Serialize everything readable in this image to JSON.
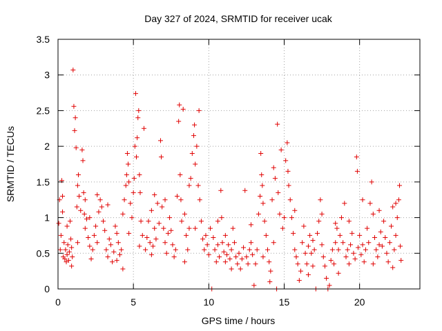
{
  "chart_data": {
    "type": "scatter",
    "title": "Day 327 of 2024, SRMTID for receiver ucak",
    "xlabel": "GPS time / hours",
    "ylabel": "SRMTID / TECUs",
    "xlim": [
      0,
      24
    ],
    "ylim": [
      0,
      3.5
    ],
    "xticks": [
      0,
      5,
      10,
      15,
      20
    ],
    "yticks": [
      0,
      0.5,
      1,
      1.5,
      2,
      2.5,
      3,
      3.5
    ],
    "grid": true,
    "marker": "plus",
    "color": "#e00000",
    "series": [
      {
        "name": "SRMTID",
        "points": [
          [
            0.05,
            0.92
          ],
          [
            0.1,
            1.25
          ],
          [
            0.15,
            0.55
          ],
          [
            0.2,
            0.75
          ],
          [
            0.25,
            1.52
          ],
          [
            0.3,
            1.3
          ],
          [
            0.35,
            0.45
          ],
          [
            0.4,
            0.65
          ],
          [
            0.45,
            0.42
          ],
          [
            0.5,
            0.55
          ],
          [
            0.55,
            0.38
          ],
          [
            0.6,
            0.48
          ],
          [
            0.65,
            0.62
          ],
          [
            0.7,
            0.4
          ],
          [
            0.75,
            0.52
          ],
          [
            0.8,
            0.95
          ],
          [
            0.85,
            0.7
          ],
          [
            0.9,
            0.58
          ],
          [
            0.95,
            0.45
          ],
          [
            1.0,
            3.07
          ],
          [
            1.05,
            2.56
          ],
          [
            1.1,
            2.22
          ],
          [
            1.15,
            2.4
          ],
          [
            1.2,
            1.98
          ],
          [
            1.25,
            1.15
          ],
          [
            1.3,
            1.45
          ],
          [
            1.35,
            1.6
          ],
          [
            1.4,
            1.3
          ],
          [
            1.5,
            1.1
          ],
          [
            1.6,
            1.95
          ],
          [
            1.65,
            1.8
          ],
          [
            1.7,
            1.35
          ],
          [
            1.75,
            1.05
          ],
          [
            1.8,
            0.85
          ],
          [
            1.9,
            0.98
          ],
          [
            2.0,
            0.72
          ],
          [
            2.1,
            0.6
          ],
          [
            2.2,
            0.42
          ],
          [
            2.3,
            0.55
          ],
          [
            2.4,
            0.75
          ],
          [
            2.5,
            0.88
          ],
          [
            2.6,
            0.65
          ],
          [
            2.7,
            1.08
          ],
          [
            2.8,
            1.25
          ],
          [
            2.9,
            1.15
          ],
          [
            3.0,
            0.95
          ],
          [
            3.1,
            0.82
          ],
          [
            3.2,
            0.55
          ],
          [
            3.3,
            0.45
          ],
          [
            3.4,
            0.7
          ],
          [
            3.5,
            0.62
          ],
          [
            3.6,
            0.38
          ],
          [
            3.7,
            0.52
          ],
          [
            3.8,
            0.88
          ],
          [
            3.9,
            0.78
          ],
          [
            4.0,
            0.65
          ],
          [
            4.1,
            0.48
          ],
          [
            4.2,
            0.55
          ],
          [
            4.3,
            1.05
          ],
          [
            4.4,
            1.25
          ],
          [
            4.5,
            1.45
          ],
          [
            4.55,
            1.6
          ],
          [
            4.6,
            1.9
          ],
          [
            4.65,
            1.75
          ],
          [
            4.7,
            1.5
          ],
          [
            4.8,
            1.2
          ],
          [
            4.9,
            1.0
          ],
          [
            5.0,
            1.35
          ],
          [
            5.05,
            1.55
          ],
          [
            5.1,
            2.0
          ],
          [
            5.15,
            2.74
          ],
          [
            5.2,
            1.85
          ],
          [
            5.25,
            2.12
          ],
          [
            5.3,
            2.4
          ],
          [
            5.35,
            2.5
          ],
          [
            5.4,
            1.6
          ],
          [
            5.45,
            1.35
          ],
          [
            5.5,
            0.95
          ],
          [
            5.6,
            0.75
          ],
          [
            5.7,
            2.25
          ],
          [
            5.8,
            0.55
          ],
          [
            5.9,
            0.72
          ],
          [
            6.0,
            0.95
          ],
          [
            6.1,
            0.65
          ],
          [
            6.2,
            0.48
          ],
          [
            6.3,
            0.6
          ],
          [
            6.4,
            0.85
          ],
          [
            6.5,
            0.7
          ],
          [
            6.6,
            1.2
          ],
          [
            6.7,
            0.92
          ],
          [
            6.8,
            2.08
          ],
          [
            6.85,
            1.85
          ],
          [
            6.9,
            1.15
          ],
          [
            7.0,
            0.85
          ],
          [
            7.1,
            0.65
          ],
          [
            7.2,
            0.5
          ],
          [
            7.3,
            0.78
          ],
          [
            7.4,
            1.0
          ],
          [
            7.5,
            0.82
          ],
          [
            7.6,
            0.62
          ],
          [
            7.7,
            0.45
          ],
          [
            7.8,
            0.55
          ],
          [
            7.9,
            1.3
          ],
          [
            8.0,
            2.35
          ],
          [
            8.05,
            2.58
          ],
          [
            8.1,
            1.6
          ],
          [
            8.15,
            1.25
          ],
          [
            8.2,
            0.95
          ],
          [
            8.3,
            2.52
          ],
          [
            8.4,
            1.05
          ],
          [
            8.5,
            0.75
          ],
          [
            8.6,
            0.55
          ],
          [
            8.7,
            0.85
          ],
          [
            8.8,
            1.55
          ],
          [
            8.9,
            1.9
          ],
          [
            9.0,
            2.15
          ],
          [
            9.05,
            2.3
          ],
          [
            9.1,
            1.75
          ],
          [
            9.2,
            2.0
          ],
          [
            9.3,
            1.45
          ],
          [
            9.35,
            2.5
          ],
          [
            9.4,
            1.25
          ],
          [
            9.5,
            0.95
          ],
          [
            9.6,
            0.7
          ],
          [
            9.7,
            0.55
          ],
          [
            9.8,
            0.75
          ],
          [
            9.9,
            0.62
          ],
          [
            10.0,
            0.48
          ],
          [
            10.1,
            0.85
          ],
          [
            10.2,
            0.0
          ],
          [
            10.3,
            0.72
          ],
          [
            10.4,
            0.55
          ],
          [
            10.5,
            0.38
          ],
          [
            10.6,
            0.62
          ],
          [
            10.7,
            0.45
          ],
          [
            10.8,
            1.38
          ],
          [
            10.85,
            1.0
          ],
          [
            10.9,
            0.65
          ],
          [
            11.0,
            0.52
          ],
          [
            11.1,
            0.38
          ],
          [
            11.2,
            0.48
          ],
          [
            11.3,
            0.62
          ],
          [
            11.4,
            0.42
          ],
          [
            11.5,
            0.55
          ],
          [
            11.6,
            0.85
          ],
          [
            11.7,
            0.65
          ],
          [
            11.8,
            0.45
          ],
          [
            11.9,
            0.35
          ],
          [
            12.0,
            0.5
          ],
          [
            12.1,
            0.28
          ],
          [
            12.2,
            0.42
          ],
          [
            12.3,
            0.58
          ],
          [
            12.4,
            1.38
          ],
          [
            12.5,
            0.45
          ],
          [
            12.6,
            0.35
          ],
          [
            12.7,
            0.55
          ],
          [
            12.8,
            0.65
          ],
          [
            12.9,
            0.48
          ],
          [
            13.0,
            0.05
          ],
          [
            13.1,
            0.35
          ],
          [
            13.2,
            0.55
          ],
          [
            13.3,
            1.05
          ],
          [
            13.4,
            1.3
          ],
          [
            13.45,
            1.9
          ],
          [
            13.5,
            1.6
          ],
          [
            13.55,
            1.45
          ],
          [
            13.6,
            1.2
          ],
          [
            13.7,
            0.95
          ],
          [
            13.8,
            0.75
          ],
          [
            13.9,
            0.55
          ],
          [
            14.0,
            0.38
          ],
          [
            14.05,
            0.1
          ],
          [
            14.1,
            0.25
          ],
          [
            14.2,
            1.25
          ],
          [
            14.3,
            1.7
          ],
          [
            14.4,
            1.55
          ],
          [
            14.5,
            0.0
          ],
          [
            14.55,
            2.31
          ],
          [
            14.6,
            1.35
          ],
          [
            14.7,
            1.05
          ],
          [
            14.8,
            1.95
          ],
          [
            14.9,
            0.85
          ],
          [
            15.0,
            1.0
          ],
          [
            15.1,
            1.8
          ],
          [
            15.2,
            2.05
          ],
          [
            15.25,
            1.65
          ],
          [
            15.3,
            1.45
          ],
          [
            15.4,
            1.25
          ],
          [
            15.5,
            1.0
          ],
          [
            15.6,
            0.78
          ],
          [
            15.7,
            0.55
          ],
          [
            15.8,
            0.45
          ],
          [
            15.9,
            0.35
          ],
          [
            16.0,
            0.12
          ],
          [
            16.1,
            0.25
          ],
          [
            16.2,
            0.65
          ],
          [
            16.3,
            0.88
          ],
          [
            16.4,
            0.5
          ],
          [
            16.5,
            0.35
          ],
          [
            16.6,
            0.6
          ],
          [
            16.7,
            0.75
          ],
          [
            16.8,
            0.5
          ],
          [
            16.9,
            0.32
          ],
          [
            17.0,
            0.55
          ],
          [
            17.1,
            0.0
          ],
          [
            17.2,
            0.78
          ],
          [
            17.3,
            0.95
          ],
          [
            17.4,
            1.25
          ],
          [
            17.5,
            0.62
          ],
          [
            17.6,
            0.45
          ],
          [
            17.7,
            0.32
          ],
          [
            17.8,
            0.15
          ],
          [
            17.9,
            0.0
          ],
          [
            18.0,
            0.05
          ],
          [
            18.1,
            0.4
          ],
          [
            18.2,
            0.55
          ],
          [
            18.3,
            0.35
          ],
          [
            18.4,
            0.65
          ],
          [
            18.5,
            0.85
          ],
          [
            18.6,
            0.55
          ],
          [
            18.7,
            0.75
          ],
          [
            18.8,
            1.0
          ],
          [
            18.9,
            0.65
          ],
          [
            19.0,
            1.2
          ],
          [
            19.1,
            0.45
          ],
          [
            19.2,
            0.55
          ],
          [
            19.3,
            0.35
          ],
          [
            19.4,
            0.62
          ],
          [
            19.5,
            0.78
          ],
          [
            19.6,
            0.5
          ],
          [
            19.7,
            0.42
          ],
          [
            19.8,
            1.85
          ],
          [
            19.85,
            1.65
          ],
          [
            19.9,
            0.58
          ],
          [
            20.0,
            0.75
          ],
          [
            20.1,
            0.48
          ],
          [
            20.2,
            0.62
          ],
          [
            20.3,
            0.38
          ],
          [
            20.4,
            0.55
          ],
          [
            20.5,
            0.85
          ],
          [
            20.6,
            0.65
          ],
          [
            20.7,
            1.2
          ],
          [
            20.8,
            1.5
          ],
          [
            20.9,
            1.05
          ],
          [
            21.0,
            0.72
          ],
          [
            21.1,
            0.55
          ],
          [
            21.2,
            0.45
          ],
          [
            21.3,
            0.62
          ],
          [
            21.4,
            0.8
          ],
          [
            21.5,
            0.6
          ],
          [
            21.6,
            0.95
          ],
          [
            21.7,
            0.72
          ],
          [
            21.8,
            0.5
          ],
          [
            21.9,
            0.38
          ],
          [
            22.0,
            0.65
          ],
          [
            22.1,
            0.88
          ],
          [
            22.2,
            1.15
          ],
          [
            22.3,
            0.55
          ],
          [
            22.4,
            0.75
          ],
          [
            22.5,
            1.0
          ],
          [
            22.6,
            1.25
          ],
          [
            22.65,
            1.45
          ],
          [
            22.7,
            0.6
          ],
          [
            22.75,
            0.4
          ],
          [
            0.3,
            1.08
          ],
          [
            0.6,
            0.88
          ],
          [
            1.3,
            0.65
          ],
          [
            1.8,
            1.25
          ],
          [
            2.1,
            1.0
          ],
          [
            3.3,
            1.18
          ],
          [
            3.9,
            0.4
          ],
          [
            4.7,
            0.78
          ],
          [
            5.4,
            0.6
          ],
          [
            6.2,
            1.1
          ],
          [
            7.1,
            1.25
          ],
          [
            8.4,
            0.38
          ],
          [
            9.1,
            0.85
          ],
          [
            10.6,
            0.95
          ],
          [
            11.5,
            0.28
          ],
          [
            12.8,
            0.9
          ],
          [
            13.6,
            0.45
          ],
          [
            15.7,
            1.1
          ],
          [
            16.6,
            0.2
          ],
          [
            17.5,
            1.05
          ],
          [
            18.6,
            0.22
          ],
          [
            19.3,
            0.95
          ],
          [
            20.2,
            1.25
          ],
          [
            21.3,
            1.1
          ],
          [
            22.2,
            0.3
          ],
          [
            0.9,
            0.32
          ],
          [
            2.6,
            1.32
          ],
          [
            4.3,
            0.28
          ],
          [
            6.4,
            1.32
          ],
          [
            8.7,
            1.45
          ],
          [
            11.1,
            0.75
          ],
          [
            14.3,
            0.65
          ],
          [
            16.9,
            0.68
          ],
          [
            18.4,
            0.92
          ],
          [
            20.9,
            0.35
          ],
          [
            22.4,
            1.2
          ]
        ]
      }
    ]
  }
}
